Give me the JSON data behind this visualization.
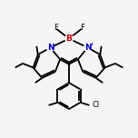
{
  "bg_color": "#f5f5f5",
  "bond_color": "#000000",
  "N_color": "#0000cc",
  "B_color": "#cc0000",
  "line_width": 1.3,
  "fig_size": [
    1.52,
    1.52
  ],
  "dpi": 100,
  "xlim": [
    0,
    10
  ],
  "ylim": [
    0,
    10
  ]
}
